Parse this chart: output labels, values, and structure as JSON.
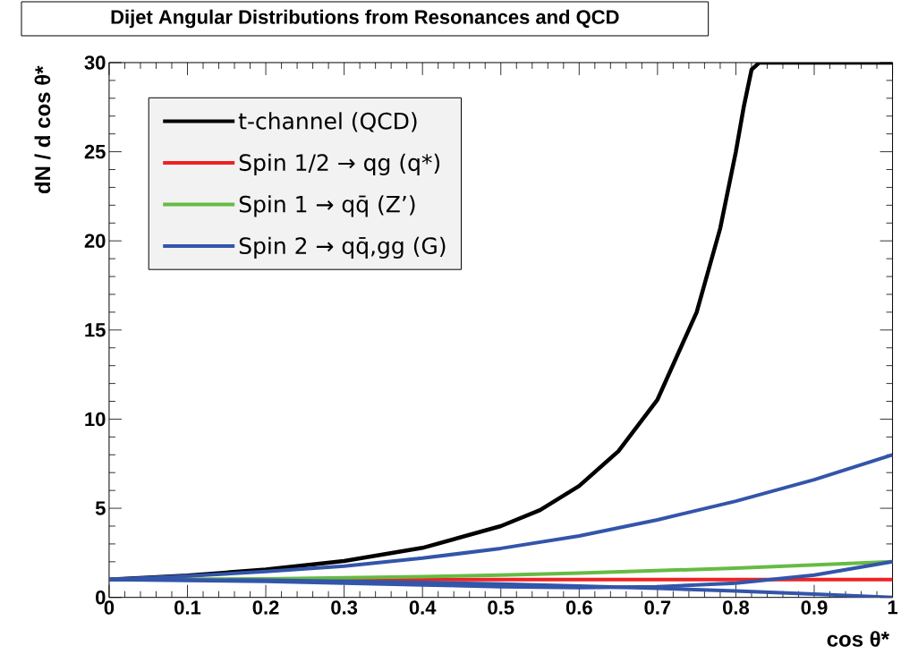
{
  "chart_data": {
    "type": "line",
    "title": "Dijet Angular Distributions from Resonances and QCD",
    "xlabel": "cos θ*",
    "ylabel": "dN / d cos θ*",
    "xlim": [
      0,
      1
    ],
    "ylim": [
      0,
      30
    ],
    "xticks": [
      0,
      0.1,
      0.2,
      0.3,
      0.4,
      0.5,
      0.6,
      0.7,
      0.8,
      0.9,
      1
    ],
    "yticks": [
      0,
      5,
      10,
      15,
      20,
      25,
      30
    ],
    "grid": false,
    "legend": "top left",
    "marker": "none",
    "line_style": "solid",
    "series": [
      {
        "name": "t-channel (QCD)",
        "color": "#000000",
        "x": [
          0,
          0.1,
          0.2,
          0.3,
          0.4,
          0.5,
          0.55,
          0.6,
          0.65,
          0.7,
          0.75,
          0.78,
          0.8,
          0.81,
          0.82,
          0.83,
          1
        ],
        "values": [
          1,
          1.23,
          1.56,
          2.04,
          2.78,
          4,
          4.9,
          6.25,
          8.2,
          11.1,
          16,
          20.7,
          25,
          27.5,
          29.6,
          30,
          30
        ]
      },
      {
        "name": "Spin 1/2 → qg (q*)",
        "color": "#ee2222",
        "x": [
          0,
          1
        ],
        "values": [
          1,
          1
        ]
      },
      {
        "name": "Spin 1 → qq̄ (Z’)",
        "color": "#66bb44",
        "x": [
          0,
          0.2,
          0.4,
          0.5,
          0.6,
          0.8,
          1
        ],
        "values": [
          1,
          1.04,
          1.16,
          1.25,
          1.36,
          1.64,
          2
        ]
      },
      {
        "name": "Spin 2 → qq̄,gg (G)",
        "color": "#3355aa",
        "x": [
          0,
          0.1,
          0.2,
          0.3,
          0.4,
          0.5,
          0.6,
          0.7,
          0.8,
          0.9,
          1
        ],
        "values": [
          1,
          1.2,
          1.45,
          1.75,
          2.2,
          2.75,
          3.45,
          4.35,
          5.4,
          6.6,
          8
        ]
      },
      {
        "color": "#3355aa",
        "x": [
          0,
          0.2,
          0.4,
          0.5,
          0.6,
          0.7,
          0.8,
          0.9,
          1
        ],
        "values": [
          1,
          0.96,
          0.84,
          0.75,
          0.64,
          0.51,
          0.36,
          0.19,
          0
        ]
      },
      {
        "color": "#3355aa",
        "x": [
          0,
          0.2,
          0.4,
          0.5,
          0.6,
          0.7,
          0.8,
          0.9,
          1
        ],
        "values": [
          1,
          0.9,
          0.7,
          0.6,
          0.55,
          0.6,
          0.8,
          1.25,
          2
        ]
      }
    ]
  }
}
